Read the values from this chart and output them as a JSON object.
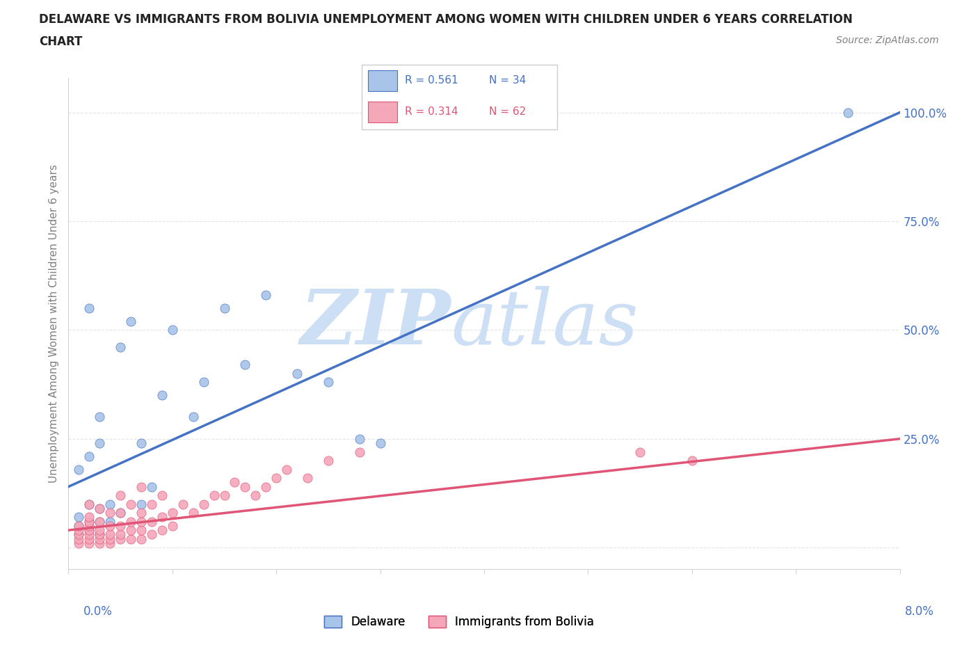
{
  "title_line1": "DELAWARE VS IMMIGRANTS FROM BOLIVIA UNEMPLOYMENT AMONG WOMEN WITH CHILDREN UNDER 6 YEARS CORRELATION",
  "title_line2": "CHART",
  "source": "Source: ZipAtlas.com",
  "ylabel": "Unemployment Among Women with Children Under 6 years",
  "ytick_vals": [
    0.0,
    0.25,
    0.5,
    0.75,
    1.0
  ],
  "ytick_labels": [
    "",
    "25.0%",
    "50.0%",
    "75.0%",
    "100.0%"
  ],
  "xmin": 0.0,
  "xmax": 0.08,
  "ymin": -0.05,
  "ymax": 1.08,
  "R_delaware": 0.561,
  "N_delaware": 34,
  "R_bolivia": 0.314,
  "N_bolivia": 62,
  "legend_labels": [
    "Delaware",
    "Immigrants from Bolivia"
  ],
  "color_delaware": "#a8c4e8",
  "color_bolivia": "#f4a7b9",
  "line_color_delaware": "#4472c4",
  "line_color_bolivia": "#e05575",
  "watermark_zip_color": "#ccdff5",
  "watermark_atlas_color": "#ccdff5",
  "del_line_x0": 0.0,
  "del_line_y0": 0.14,
  "del_line_x1": 0.08,
  "del_line_y1": 1.0,
  "bol_line_x0": 0.0,
  "bol_line_y0": 0.04,
  "bol_line_x1": 0.08,
  "bol_line_y1": 0.25,
  "del_scatter_x": [
    0.001,
    0.001,
    0.001,
    0.001,
    0.002,
    0.002,
    0.002,
    0.002,
    0.002,
    0.003,
    0.003,
    0.003,
    0.003,
    0.003,
    0.004,
    0.004,
    0.005,
    0.005,
    0.006,
    0.007,
    0.007,
    0.008,
    0.009,
    0.01,
    0.012,
    0.013,
    0.015,
    0.017,
    0.019,
    0.022,
    0.025,
    0.028,
    0.03,
    0.075
  ],
  "del_scatter_y": [
    0.03,
    0.05,
    0.07,
    0.18,
    0.04,
    0.06,
    0.1,
    0.21,
    0.55,
    0.03,
    0.06,
    0.09,
    0.24,
    0.3,
    0.06,
    0.1,
    0.08,
    0.46,
    0.52,
    0.1,
    0.24,
    0.14,
    0.35,
    0.5,
    0.3,
    0.38,
    0.55,
    0.42,
    0.58,
    0.4,
    0.38,
    0.25,
    0.24,
    1.0
  ],
  "bol_scatter_x": [
    0.001,
    0.001,
    0.001,
    0.001,
    0.001,
    0.002,
    0.002,
    0.002,
    0.002,
    0.002,
    0.002,
    0.002,
    0.002,
    0.003,
    0.003,
    0.003,
    0.003,
    0.003,
    0.003,
    0.004,
    0.004,
    0.004,
    0.004,
    0.004,
    0.005,
    0.005,
    0.005,
    0.005,
    0.005,
    0.006,
    0.006,
    0.006,
    0.006,
    0.007,
    0.007,
    0.007,
    0.007,
    0.007,
    0.008,
    0.008,
    0.008,
    0.009,
    0.009,
    0.009,
    0.01,
    0.01,
    0.011,
    0.012,
    0.013,
    0.014,
    0.015,
    0.016,
    0.017,
    0.018,
    0.019,
    0.02,
    0.021,
    0.023,
    0.025,
    0.028,
    0.055,
    0.06
  ],
  "bol_scatter_y": [
    0.01,
    0.02,
    0.03,
    0.04,
    0.05,
    0.01,
    0.02,
    0.03,
    0.04,
    0.05,
    0.06,
    0.07,
    0.1,
    0.01,
    0.02,
    0.03,
    0.04,
    0.06,
    0.09,
    0.01,
    0.02,
    0.03,
    0.05,
    0.08,
    0.02,
    0.03,
    0.05,
    0.08,
    0.12,
    0.02,
    0.04,
    0.06,
    0.1,
    0.02,
    0.04,
    0.06,
    0.08,
    0.14,
    0.03,
    0.06,
    0.1,
    0.04,
    0.07,
    0.12,
    0.05,
    0.08,
    0.1,
    0.08,
    0.1,
    0.12,
    0.12,
    0.15,
    0.14,
    0.12,
    0.14,
    0.16,
    0.18,
    0.16,
    0.2,
    0.22,
    0.22,
    0.2
  ]
}
